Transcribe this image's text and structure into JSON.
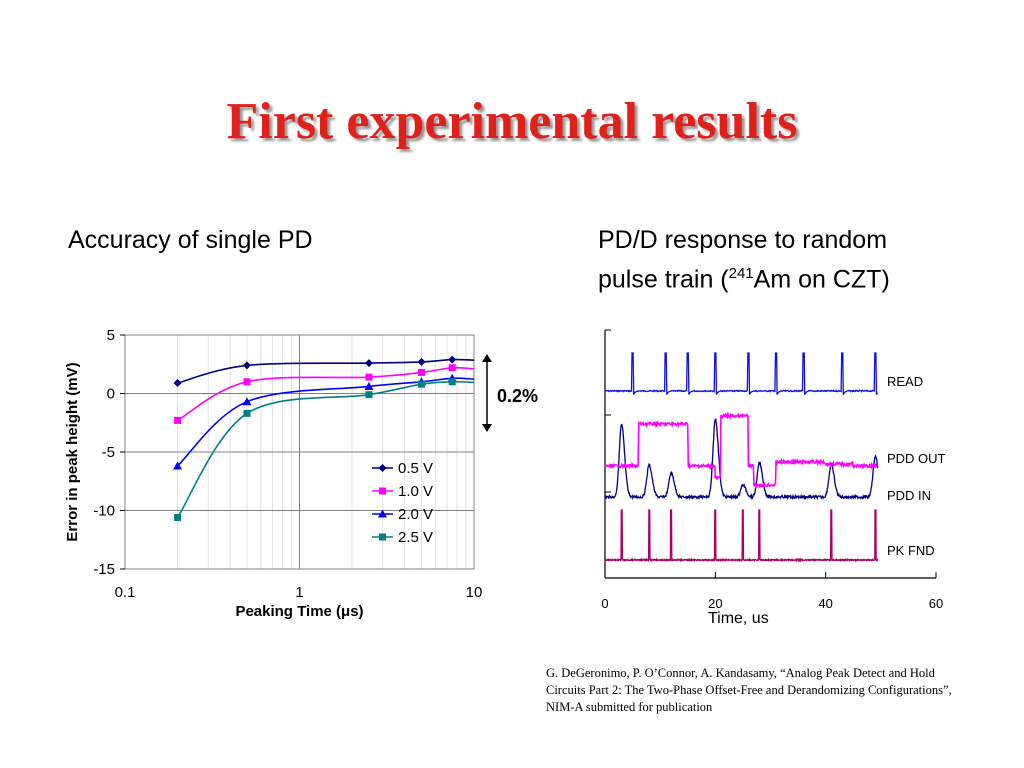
{
  "slide": {
    "title": "First experimental results",
    "left_caption": "Accuracy of single PD",
    "right_caption_line1": "PD/D response to random",
    "right_caption_line2_pre": "pulse train (",
    "right_caption_sup": "241",
    "right_caption_line2_post": "Am on CZT)",
    "citation": "G. DeGeronimo, P. O’Connor, A. Kandasamy,  “Analog Peak Detect and Hold Circuits Part 2: The Two-Phase Offset-Free and Derandomizing Configurations”, NIM-A submitted for publication",
    "annotation": "0.2%"
  },
  "chart_data": [
    {
      "type": "line",
      "xscale": "log",
      "xlabel": "Peaking Time (μs)",
      "ylabel": "Error in peak height (mV)",
      "xlim": [
        0.1,
        10
      ],
      "ylim": [
        -15,
        5
      ],
      "x_ticks": [
        "0.1",
        "1",
        "10"
      ],
      "y_ticks": [
        "5",
        "0",
        "-5",
        "-10",
        "-15"
      ],
      "legend_position": "bottom-right",
      "series": [
        {
          "name": "0.5 V",
          "color": "#000080",
          "marker": "diamond",
          "x": [
            0.2,
            0.5,
            2.5,
            5,
            7.5
          ],
          "y": [
            0.9,
            2.4,
            2.6,
            2.7,
            2.9
          ]
        },
        {
          "name": "1.0 V",
          "color": "#ff00ff",
          "marker": "square",
          "x": [
            0.2,
            0.5,
            2.5,
            5,
            7.5
          ],
          "y": [
            -2.3,
            1.0,
            1.4,
            1.8,
            2.2
          ]
        },
        {
          "name": "2.0 V",
          "color": "#0000ff",
          "marker": "triangle",
          "x": [
            0.2,
            0.5,
            2.5,
            5,
            7.5
          ],
          "y": [
            -6.2,
            -0.7,
            0.6,
            1.0,
            1.3
          ]
        },
        {
          "name": "2.5 V",
          "color": "#008080",
          "marker": "square",
          "x": [
            0.2,
            0.5,
            2.5,
            5,
            7.5
          ],
          "y": [
            -10.6,
            -1.7,
            -0.1,
            0.8,
            1.0
          ]
        }
      ]
    },
    {
      "type": "line",
      "xlabel": "Time, us",
      "xlim": [
        0,
        60
      ],
      "x_ticks": [
        "0",
        "20",
        "40",
        "60"
      ],
      "traces": [
        {
          "name": "READ",
          "color": "#1010e0",
          "pulse_times": [
            5,
            11,
            15,
            20,
            26,
            31,
            36,
            43,
            49
          ]
        },
        {
          "name": "PDD OUT",
          "color": "#ff00ff",
          "high_intervals": [
            [
              6,
              15
            ],
            [
              21,
              26
            ]
          ],
          "low_intervals": [
            [
              27,
              31
            ]
          ]
        },
        {
          "name": "PDD IN",
          "color": "#000080",
          "peak_times": [
            3,
            8,
            12,
            20,
            25,
            28,
            41,
            49
          ]
        },
        {
          "name": "PK FND",
          "color": "#aa0066",
          "pulse_times": [
            3,
            8,
            12,
            20,
            25,
            28,
            41,
            49
          ]
        }
      ]
    }
  ]
}
